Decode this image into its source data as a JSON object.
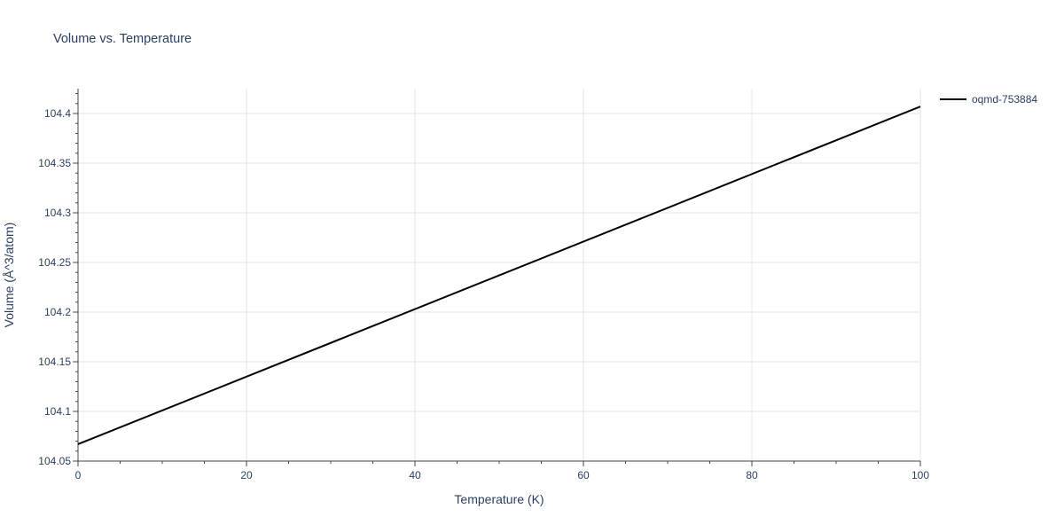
{
  "chart_data": {
    "type": "line",
    "title": "Volume vs. Temperature",
    "xlabel": "Temperature (K)",
    "ylabel": "Volume (Å^3/atom)",
    "xlim": [
      0,
      100
    ],
    "ylim": [
      104.05,
      104.425
    ],
    "x_ticks": [
      0,
      20,
      40,
      60,
      80,
      100
    ],
    "x_tick_labels": [
      "0",
      "20",
      "40",
      "60",
      "80",
      "100"
    ],
    "y_ticks": [
      104.05,
      104.1,
      104.15,
      104.2,
      104.25,
      104.3,
      104.35,
      104.4
    ],
    "y_tick_labels": [
      "104.05",
      "104.1",
      "104.15",
      "104.2",
      "104.25",
      "104.3",
      "104.35",
      "104.4"
    ],
    "grid": true,
    "legend_position": "top-right",
    "series": [
      {
        "name": "oqmd-753884",
        "color": "#000000",
        "x": [
          0,
          100
        ],
        "y": [
          104.067,
          104.407
        ]
      }
    ]
  }
}
